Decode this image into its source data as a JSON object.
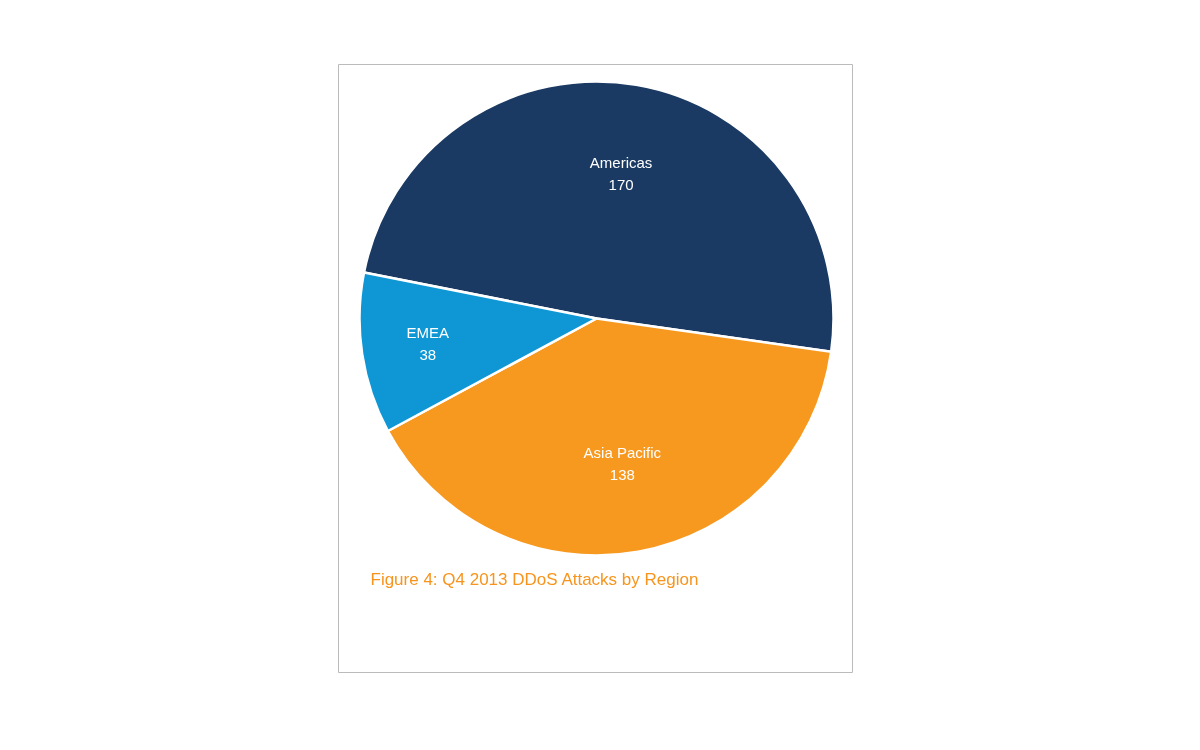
{
  "chart_data": {
    "type": "pie",
    "title": "Figure 4: Q4 2013 DDoS Attacks by Region",
    "categories": [
      "Americas",
      "Asia Pacific",
      "EMEA"
    ],
    "values": [
      170,
      138,
      38
    ],
    "colors": [
      "#1a3a63",
      "#f7981f",
      "#0e96d5"
    ],
    "data_labels": true
  }
}
